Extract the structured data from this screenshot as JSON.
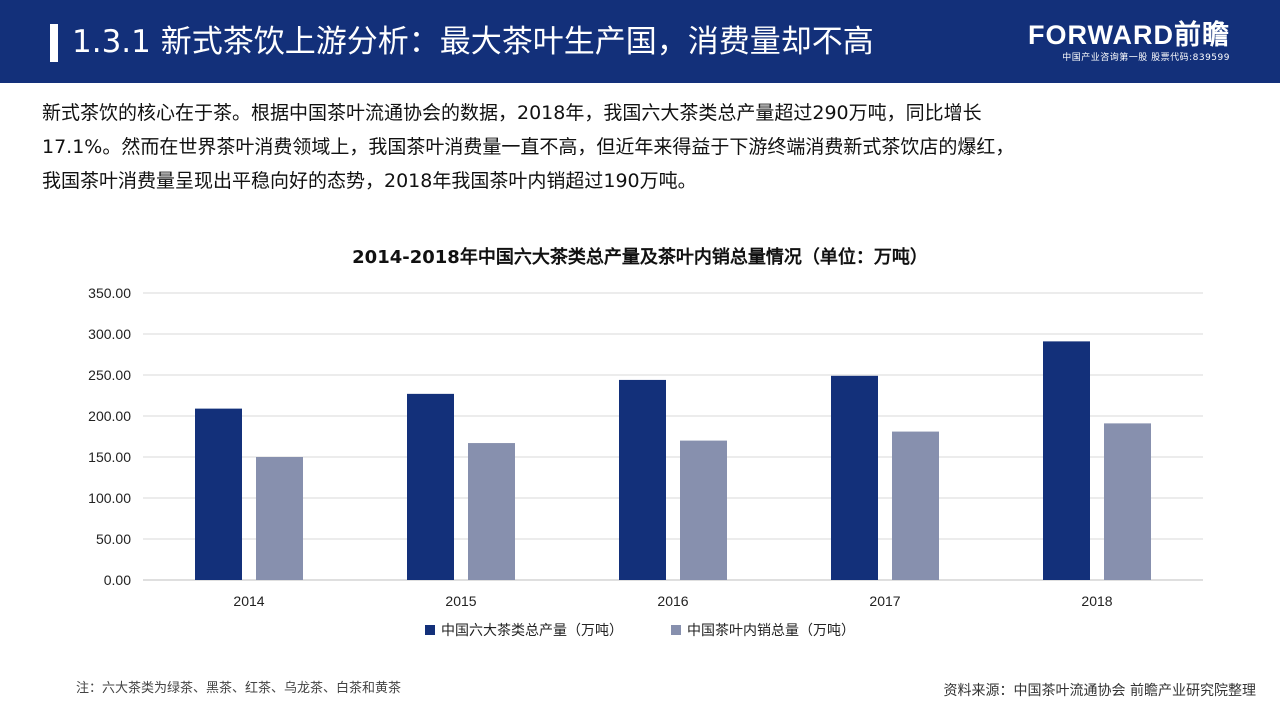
{
  "header": {
    "title": "1.3.1 新式茶饮上游分析：最大茶叶生产国，消费量却不高",
    "logo_name": "FORWARD前瞻",
    "logo_sub": "中国产业咨询第一股 股票代码:839599"
  },
  "intro": {
    "lines": [
      "新式茶饮的核心在于茶。根据中国茶叶流通协会的数据，2018年，我国六大茶类总产量超过290万吨，同比增长",
      "17.1%。然而在世界茶叶消费领域上，我国茶叶消费量一直不高，但近年来得益于下游终端消费新式茶饮店的爆红，",
      "我国茶叶消费量呈现出平稳向好的态势，2018年我国茶叶内销超过190万吨。"
    ]
  },
  "chart_data": {
    "type": "bar",
    "title": "2014-2018年中国六大茶类总产量及茶叶内销总量情况（单位：万吨）",
    "categories": [
      "2014",
      "2015",
      "2016",
      "2017",
      "2018"
    ],
    "series": [
      {
        "name": "中国六大茶类总产量（万吨）",
        "color": "#13307a",
        "values": [
          209,
          227,
          244,
          249,
          291
        ]
      },
      {
        "name": "中国茶叶内销总量（万吨）",
        "color": "#8790ae",
        "values": [
          150,
          167,
          170,
          181,
          191
        ]
      }
    ],
    "yticks": [
      "0.00",
      "50.00",
      "100.00",
      "150.00",
      "200.00",
      "250.00",
      "300.00",
      "350.00"
    ],
    "ylim": [
      0,
      350
    ],
    "grid": true,
    "legend_position": "bottom"
  },
  "note": "注：六大茶类为绿茶、黑茶、红茶、乌龙茶、白茶和黄茶",
  "source": "资料来源：中国茶叶流通协会 前瞻产业研究院整理"
}
